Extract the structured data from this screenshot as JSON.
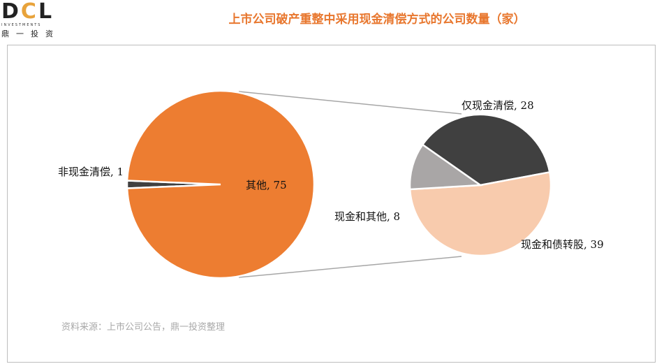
{
  "header": {
    "logo_mark": "DCL",
    "logo_sub": "INVESTMENTS",
    "logo_cn": "鼎一投资",
    "title": "上市公司破产重整中采用现金清偿方式的公司数量（家）"
  },
  "colors": {
    "main_other": "#ed7d31",
    "main_noncash": "#404040",
    "sub_cash_only": "#404040",
    "sub_cash_other": "#a9a6a6",
    "sub_cash_debt_equity": "#f8cbad"
  },
  "chart_data": {
    "type": "pie",
    "subtype": "pie-of-pie",
    "title": "上市公司破产重整中采用现金清偿方式的公司数量（家）",
    "main_pie": [
      {
        "label": "非现金清偿",
        "value": 1
      },
      {
        "label": "其他",
        "value": 75
      }
    ],
    "secondary_pie": [
      {
        "label": "仅现金清偿",
        "value": 28
      },
      {
        "label": "现金和债转股",
        "value": 39
      },
      {
        "label": "现金和其他",
        "value": 8
      }
    ],
    "labels": {
      "noncash": "非现金清偿, 1",
      "other": "其他, 75",
      "cash_only": "仅现金清偿, 28",
      "cash_debt_equity": "现金和债转股, 39",
      "cash_other": "现金和其他, 8"
    }
  },
  "footer": {
    "source": "资料来源：上市公司公告，鼎一投资整理"
  }
}
